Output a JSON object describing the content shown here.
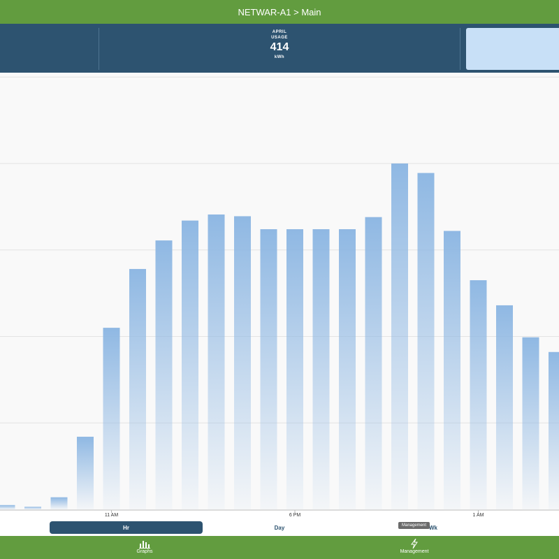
{
  "header": {
    "title": "NETWAR-A1 > Main"
  },
  "summary": {
    "month": "APRIL",
    "label": "USAGE",
    "value": 414,
    "unit": "kWh"
  },
  "chart_data": {
    "type": "bar",
    "categories": [
      null,
      null,
      null,
      null,
      "11 AM",
      null,
      null,
      null,
      null,
      null,
      null,
      "6 PM",
      null,
      null,
      null,
      null,
      null,
      null,
      "1 AM",
      null,
      null,
      null
    ],
    "values": [
      0.05,
      0.03,
      0.14,
      0.84,
      2.1,
      2.78,
      3.11,
      3.34,
      3.41,
      3.39,
      3.24,
      3.24,
      3.24,
      3.24,
      3.38,
      4.0,
      3.89,
      3.22,
      2.65,
      2.36,
      1.99,
      1.82
    ],
    "color": "#8fb8e3",
    "ylim": [
      0,
      5.05
    ],
    "yticks": [
      1,
      2,
      3,
      4,
      5
    ],
    "grid": true
  },
  "tabs": [
    "Hr",
    "Day",
    "Wk"
  ],
  "tooltip": "Management",
  "nav": [
    "Graphs",
    "Management"
  ]
}
